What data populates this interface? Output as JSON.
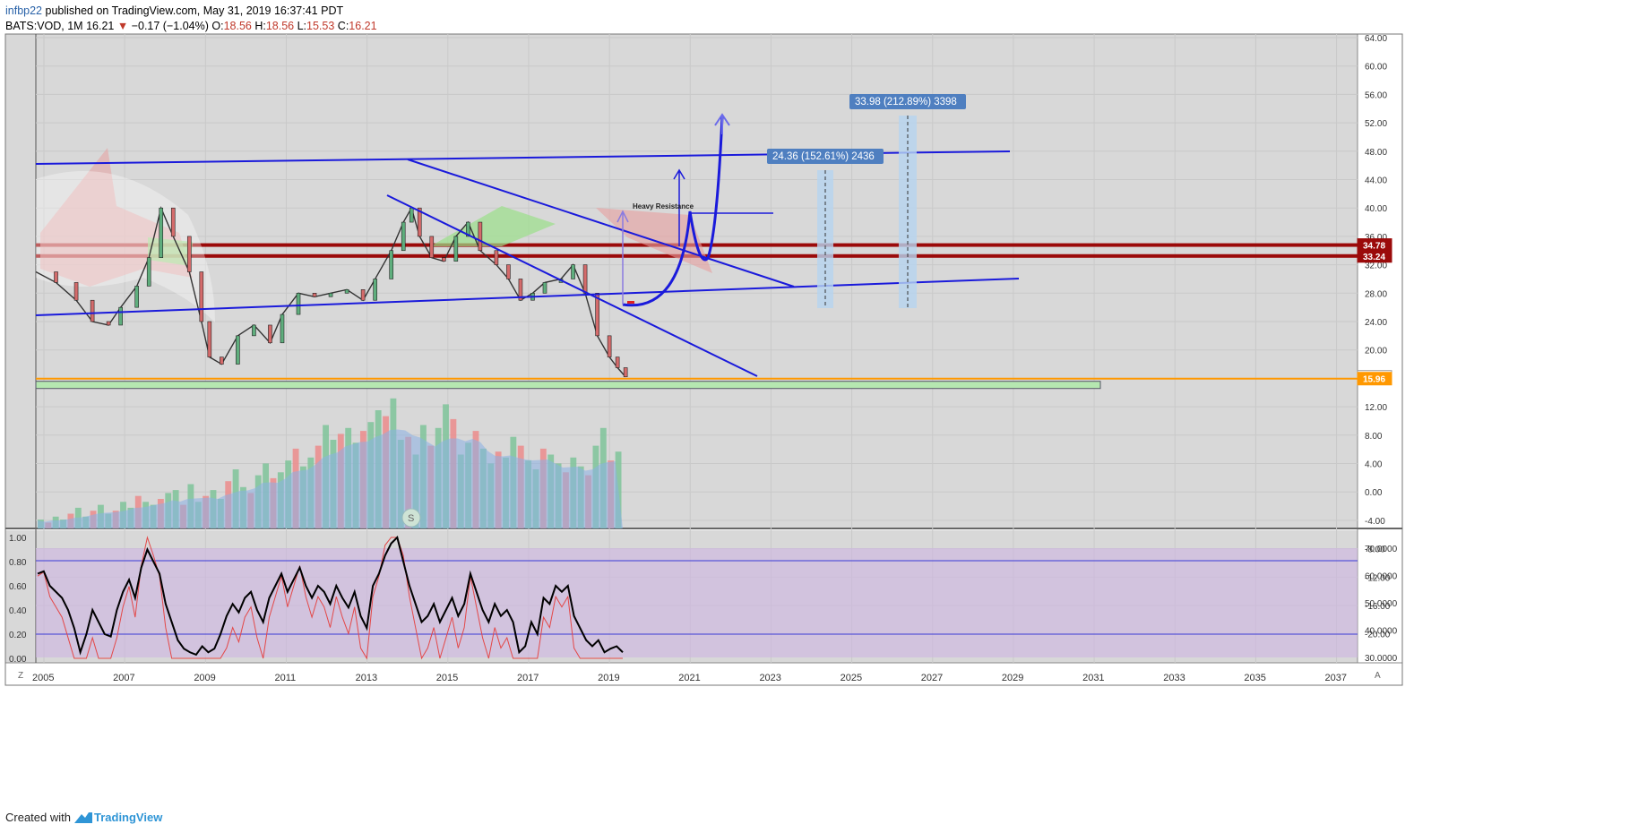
{
  "header": {
    "user": "infbp22",
    "published_text": " published on TradingView.com, May 31, 2019 16:37:41 PDT",
    "symbol": "BATS:VOD, 1M",
    "last": "16.21",
    "change": "−0.17 (−1.04%)",
    "open_label": "O:",
    "open": "18.56",
    "high_label": "H:",
    "high": "18.56",
    "low_label": "L:",
    "low": "15.53",
    "close_label": "C:",
    "close": "16.21"
  },
  "footer": {
    "created_with": "Created with",
    "brand": "TradingView"
  },
  "axis_corner": {
    "left": "Z",
    "right": "A"
  },
  "colors": {
    "background": "#d8d8d8",
    "trendline": "#1a1adb",
    "resistance_zone": "#9b0a0a",
    "support_zone": "#b5e7b0",
    "price_line": "#ff9800",
    "rsi_band": "#cfb5e3",
    "candle_up": "#2e2e2e",
    "volume_up": "#7fc49a",
    "volume_down": "#ec8c8c",
    "volume_ma": "#8ab0e6"
  },
  "chart_data": {
    "type": "candlestick",
    "x_axis_years": [
      "2005",
      "2007",
      "2009",
      "2011",
      "2013",
      "2015",
      "2017",
      "2019",
      "2021",
      "2023",
      "2025",
      "2027",
      "2029",
      "2031",
      "2033",
      "2035",
      "2037"
    ],
    "y_ticks": [
      "64.00",
      "60.00",
      "56.00",
      "52.00",
      "48.00",
      "44.00",
      "40.00",
      "36.00",
      "32.00",
      "28.00",
      "24.00",
      "20.00",
      "16.00",
      "12.00",
      "8.00",
      "4.00",
      "0.00",
      "-4.00",
      "-8.00",
      "-12.00",
      "-16.00",
      "-20.00"
    ],
    "price_labels": [
      {
        "text": "34.78",
        "value": 34.78,
        "color": "#9b0a0a"
      },
      {
        "text": "33.24",
        "value": 33.24,
        "color": "#9b0a0a"
      },
      {
        "text": "16.21",
        "value": 16.21,
        "color": "#ffffff"
      },
      {
        "text": "15.96",
        "value": 15.96,
        "color": "#ff9800"
      }
    ],
    "annotations": [
      {
        "text": "Heavy Resistance"
      },
      {
        "text": "24.36 (152.61%) 2436"
      },
      {
        "text": "33.98 (212.89%) 3398"
      }
    ],
    "price_path": [
      [
        2004.8,
        31
      ],
      [
        2005.3,
        29.5
      ],
      [
        2005.8,
        27
      ],
      [
        2006.2,
        24
      ],
      [
        2006.6,
        23.5
      ],
      [
        2006.9,
        26
      ],
      [
        2007.3,
        29
      ],
      [
        2007.6,
        33
      ],
      [
        2007.9,
        40
      ],
      [
        2008.2,
        36
      ],
      [
        2008.6,
        31
      ],
      [
        2008.9,
        24
      ],
      [
        2009.1,
        19
      ],
      [
        2009.4,
        18
      ],
      [
        2009.8,
        22
      ],
      [
        2010.2,
        23.5
      ],
      [
        2010.6,
        21
      ],
      [
        2010.9,
        25
      ],
      [
        2011.3,
        28
      ],
      [
        2011.7,
        27.5
      ],
      [
        2012.1,
        28
      ],
      [
        2012.5,
        28.5
      ],
      [
        2012.9,
        27
      ],
      [
        2013.2,
        30
      ],
      [
        2013.6,
        34
      ],
      [
        2013.9,
        38
      ],
      [
        2014.1,
        40
      ],
      [
        2014.3,
        36
      ],
      [
        2014.6,
        33
      ],
      [
        2014.9,
        32.5
      ],
      [
        2015.2,
        36
      ],
      [
        2015.5,
        38
      ],
      [
        2015.8,
        34
      ],
      [
        2016.2,
        32
      ],
      [
        2016.5,
        30
      ],
      [
        2016.8,
        27
      ],
      [
        2017.1,
        28
      ],
      [
        2017.4,
        29.5
      ],
      [
        2017.8,
        30
      ],
      [
        2018.1,
        32
      ],
      [
        2018.4,
        28
      ],
      [
        2018.7,
        22
      ],
      [
        2019.0,
        19
      ],
      [
        2019.2,
        17.5
      ],
      [
        2019.4,
        16.21
      ]
    ],
    "volume_bars": [
      3,
      2,
      4,
      3,
      5,
      7,
      4,
      6,
      8,
      5,
      6,
      9,
      7,
      11,
      9,
      8,
      10,
      12,
      13,
      8,
      15,
      9,
      11,
      13,
      10,
      16,
      20,
      14,
      12,
      18,
      22,
      17,
      19,
      23,
      27,
      21,
      24,
      28,
      35,
      30,
      32,
      34,
      29,
      33,
      36,
      40,
      38,
      44,
      30,
      31,
      25,
      35,
      28,
      34,
      42,
      37,
      25,
      29,
      33,
      27,
      22,
      26,
      24,
      31,
      28,
      23,
      20,
      27,
      25,
      22,
      19,
      24,
      21,
      18,
      28,
      34,
      23,
      26
    ],
    "rsi_ticks_left": [
      "1.00",
      "0.80",
      "0.60",
      "0.40",
      "0.20",
      "0.00"
    ],
    "rsi_ticks_right": [
      "70.0000",
      "60.0000",
      "50.0000",
      "40.0000",
      "30.0000"
    ],
    "stoch_k": [
      0.7,
      0.72,
      0.6,
      0.55,
      0.5,
      0.4,
      0.25,
      0.05,
      0.2,
      0.4,
      0.3,
      0.2,
      0.18,
      0.4,
      0.55,
      0.65,
      0.5,
      0.75,
      0.9,
      0.8,
      0.7,
      0.45,
      0.3,
      0.15,
      0.08,
      0.05,
      0.03,
      0.1,
      0.05,
      0.08,
      0.2,
      0.35,
      0.45,
      0.38,
      0.5,
      0.55,
      0.4,
      0.3,
      0.5,
      0.6,
      0.7,
      0.55,
      0.65,
      0.75,
      0.6,
      0.5,
      0.6,
      0.55,
      0.45,
      0.6,
      0.5,
      0.42,
      0.55,
      0.35,
      0.25,
      0.6,
      0.7,
      0.85,
      0.95,
      1.0,
      0.8,
      0.6,
      0.45,
      0.3,
      0.35,
      0.45,
      0.3,
      0.4,
      0.5,
      0.35,
      0.45,
      0.7,
      0.55,
      0.4,
      0.3,
      0.45,
      0.35,
      0.4,
      0.3,
      0.05,
      0.1,
      0.3,
      0.2,
      0.5,
      0.45,
      0.6,
      0.55,
      0.6,
      0.35,
      0.25,
      0.15,
      0.1,
      0.15,
      0.05,
      0.08,
      0.1,
      0.05
    ]
  }
}
